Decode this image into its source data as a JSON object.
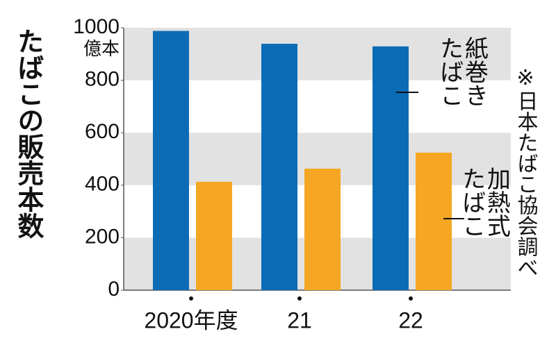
{
  "chart_data": {
    "type": "bar",
    "title": "たばこの販売本数",
    "y_unit": "億本",
    "categories": [
      "2020年度",
      "21",
      "22"
    ],
    "series": [
      {
        "name": "紙巻きたばこ",
        "color": "#0b6cb6",
        "values": [
          988,
          939,
          929
        ]
      },
      {
        "name": "加熱式たばこ",
        "color": "#f5a623",
        "values": [
          413,
          463,
          524
        ]
      }
    ],
    "ylim": [
      0,
      1000
    ],
    "yticks": [
      0,
      200,
      400,
      600,
      800,
      1000
    ],
    "grid": true,
    "source": "※日本たばこ協会調べ"
  }
}
